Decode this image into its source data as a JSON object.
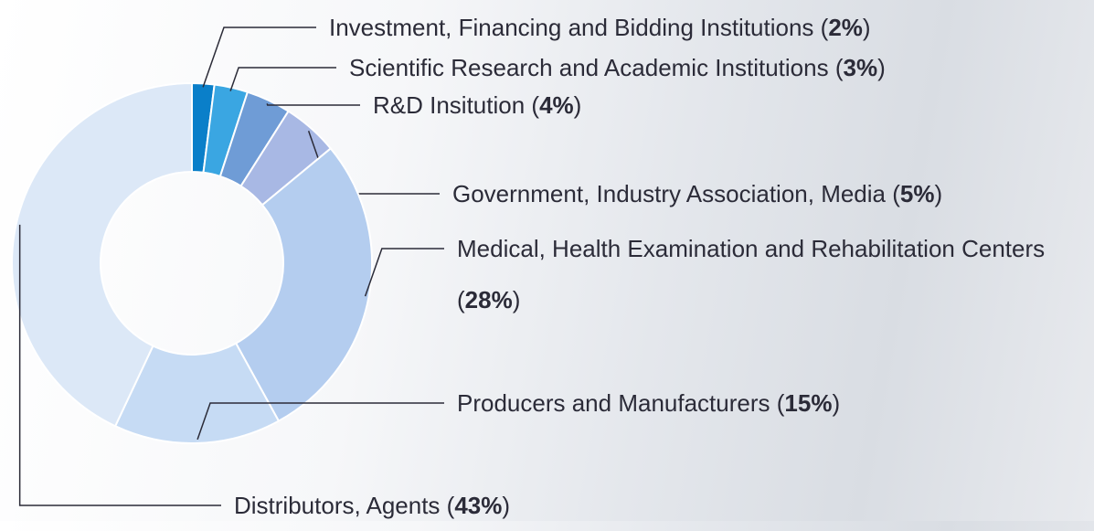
{
  "chart_data": {
    "type": "pie",
    "donut": true,
    "categories": [
      "Investment, Financing and Bidding Institutions",
      "Scientific Research and Academic Institutions",
      "R&D Insitution",
      "Government, Industry Association, Media",
      "Medical, Health Examination and Rehabilitation Centers",
      "Producers and Manufacturers",
      "Distributors, Agents"
    ],
    "values": [
      2,
      3,
      4,
      5,
      28,
      15,
      43
    ],
    "value_labels": [
      "2%",
      "3%",
      "4%",
      "5%",
      "28%",
      "15%",
      "43%"
    ],
    "colors": [
      "#0a7fc9",
      "#3aa6e2",
      "#6f9cd6",
      "#a8b8e4",
      "#b4cdef",
      "#c6dbf4",
      "#dce8f7"
    ]
  }
}
